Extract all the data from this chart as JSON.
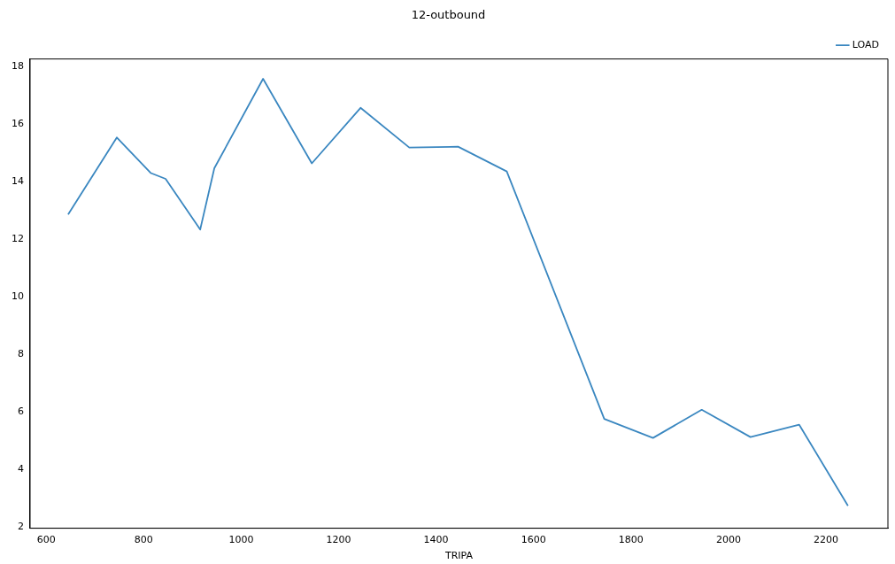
{
  "chart_data": {
    "type": "line",
    "title": "12-outbound",
    "xlabel": "TRIPA",
    "x": [
      645,
      745,
      815,
      845,
      916,
      945,
      1045,
      1145,
      1245,
      1345,
      1445,
      1545,
      1745,
      1845,
      1945,
      2045,
      2145,
      2245
    ],
    "series": [
      {
        "name": "LOAD",
        "color": "#3a87c0",
        "values": [
          12.85,
          15.53,
          14.29,
          14.09,
          12.33,
          14.46,
          17.57,
          14.63,
          16.56,
          15.18,
          15.21,
          14.35,
          5.74,
          5.08,
          6.06,
          5.11,
          5.54,
          2.72
        ]
      }
    ],
    "xlim": [
      567,
      2327
    ],
    "xticks": [
      600,
      800,
      1000,
      1200,
      1400,
      1600,
      1800,
      2000,
      2200
    ],
    "ylim": [
      1.94,
      18.26
    ],
    "yticks": [
      2,
      4,
      6,
      8,
      10,
      12,
      14,
      16,
      18
    ],
    "grid": false,
    "legend": "top right",
    "marker": "none",
    "line_style": "solid"
  }
}
